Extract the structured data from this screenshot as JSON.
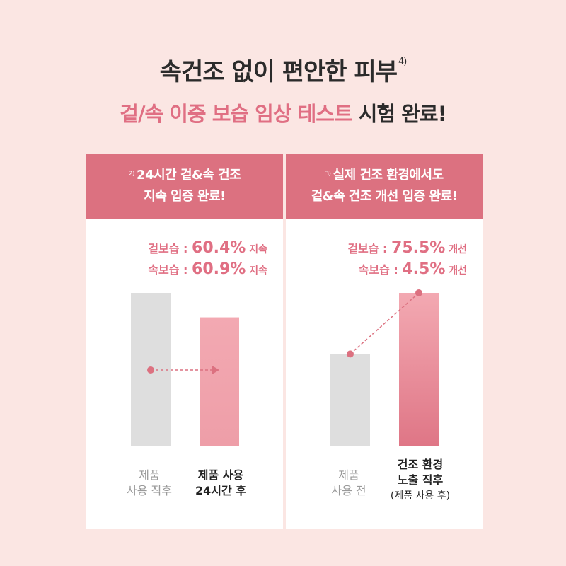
{
  "header": {
    "title": "속건조 없이 편안한 피부",
    "title_note": "4)",
    "subtitle_highlight": "겉/속 이중 보습 임상 테스트",
    "subtitle_rest": "시험 완료!"
  },
  "colors": {
    "accent": "#dc7180",
    "accent_text": "#e06f83",
    "bar_before": "#dedede",
    "bar_after": "#ee9ea8",
    "background": "#fbe6e3"
  },
  "panels": [
    {
      "note": "2)",
      "head_line1": "24시간 겉&속 건조",
      "head_line2": "지속 입증 완료!",
      "stat1_label": "겉보습 : ",
      "stat1_value": "60.4%",
      "stat1_suffix": " 지속",
      "stat2_label": "속보습 : ",
      "stat2_value": "60.9%",
      "stat2_suffix": " 지속",
      "cat1_line1": "제품",
      "cat1_line2": "사용 직후",
      "cat2_line1": "제품 사용",
      "cat2_line2": "24시간 후"
    },
    {
      "note": "3)",
      "head_line1": "실제 건조 환경에서도",
      "head_line2": "겉&속 건조 개선 입증 완료!",
      "stat1_label": "겉보습 : ",
      "stat1_value": "75.5%",
      "stat1_suffix": " 개선",
      "stat2_label": "속보습 : ",
      "stat2_value": "4.5%",
      "stat2_suffix": " 개선",
      "cat1_line1": "제품",
      "cat1_line2": "사용 전",
      "cat2_line1": "건조 환경",
      "cat2_line2": "노출 직후",
      "cat2_line3": "(제품 사용 후)"
    }
  ],
  "chart_data": [
    {
      "type": "bar",
      "categories": [
        "제품 사용 직후",
        "제품 사용 24시간 후"
      ],
      "values": [
        100,
        84
      ],
      "ylim": [
        0,
        100
      ],
      "arrow": "horizontal",
      "grid": false
    },
    {
      "type": "bar",
      "categories": [
        "제품 사용 전",
        "건조 환경 노출 직후 (제품 사용 후)"
      ],
      "values": [
        60,
        100
      ],
      "ylim": [
        0,
        100
      ],
      "arrow": "rising",
      "grid": false
    }
  ]
}
